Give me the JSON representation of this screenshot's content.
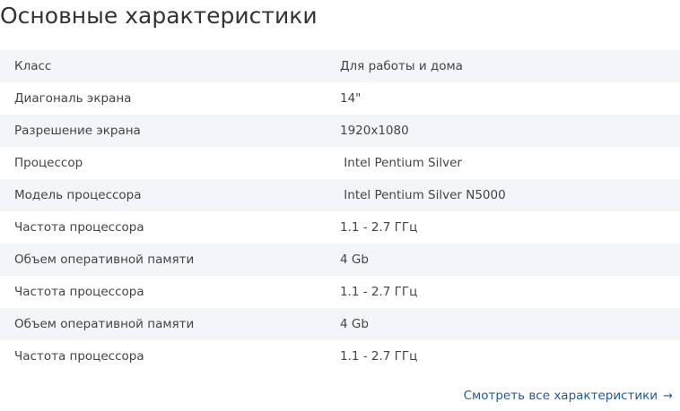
{
  "title": "Основные характеристики",
  "specs": [
    {
      "label": "Класс",
      "value": "Для работы и дома"
    },
    {
      "label": "Диагональ экрана",
      "value": "14\""
    },
    {
      "label": "Разрешение экрана",
      "value": "1920x1080"
    },
    {
      "label": "Процессор",
      "value": " Intel Pentium Silver"
    },
    {
      "label": "Модель процессора",
      "value": " Intel Pentium Silver N5000"
    },
    {
      "label": "Частота процессора",
      "value": "1.1 - 2.7 ГГц"
    },
    {
      "label": "Объем оперативной памяти",
      "value": "4 Gb"
    },
    {
      "label": "Частота процессора",
      "value": "1.1 - 2.7 ГГц"
    },
    {
      "label": "Объем оперативной памяти",
      "value": "4 Gb"
    },
    {
      "label": "Частота процессора",
      "value": "1.1 - 2.7 ГГц"
    }
  ],
  "all_link": {
    "label": "Смотреть все характеристики",
    "icon": "arrow-right-icon",
    "arrow": "→"
  },
  "colors": {
    "text": "#333333",
    "row_stripe": "#f2f5f9",
    "link": "#1e5a9a"
  }
}
